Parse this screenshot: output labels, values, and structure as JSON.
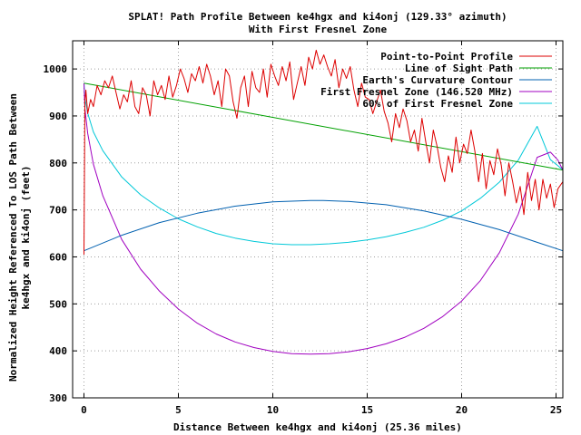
{
  "chart_data": {
    "type": "line",
    "title": "SPLAT! Path Profile Between ke4hgx and ki4onj (129.33° azimuth)",
    "subtitle": "With First Fresnel Zone",
    "xlabel": "Distance Between ke4hgx and ki4onj (25.36 miles)",
    "ylabel_lines": [
      "Normalized Height Referenced To LOS Path Between",
      "ke4hgx and ki4onj (feet)"
    ],
    "xlim": [
      -0.6,
      25.36
    ],
    "ylim": [
      300,
      1060
    ],
    "x_ticks": [
      "0",
      "5",
      "10",
      "15",
      "20",
      "25"
    ],
    "y_ticks": [
      "300",
      "400",
      "500",
      "600",
      "700",
      "800",
      "900",
      "1000"
    ],
    "grid": true,
    "legend_position": "top-right",
    "series": [
      {
        "name": "Point-to-Point Profile",
        "color": "#dd0000",
        "x": [
          0,
          0.05,
          0.1,
          0.2,
          0.35,
          0.5,
          0.7,
          0.9,
          1.1,
          1.3,
          1.5,
          1.7,
          1.9,
          2.1,
          2.3,
          2.5,
          2.7,
          2.9,
          3.1,
          3.3,
          3.5,
          3.7,
          3.9,
          4.1,
          4.3,
          4.5,
          4.7,
          4.9,
          5.1,
          5.3,
          5.5,
          5.7,
          5.9,
          6.1,
          6.3,
          6.5,
          6.7,
          6.9,
          7.1,
          7.3,
          7.5,
          7.7,
          7.9,
          8.1,
          8.3,
          8.5,
          8.7,
          8.9,
          9.1,
          9.3,
          9.5,
          9.7,
          9.9,
          10.1,
          10.3,
          10.5,
          10.7,
          10.9,
          11.1,
          11.3,
          11.5,
          11.7,
          11.9,
          12.1,
          12.3,
          12.5,
          12.7,
          12.9,
          13.1,
          13.3,
          13.5,
          13.7,
          13.9,
          14.1,
          14.3,
          14.5,
          14.7,
          14.9,
          15.1,
          15.3,
          15.5,
          15.7,
          15.9,
          16.1,
          16.3,
          16.5,
          16.7,
          16.9,
          17.1,
          17.3,
          17.5,
          17.7,
          17.9,
          18.1,
          18.3,
          18.5,
          18.7,
          18.9,
          19.1,
          19.3,
          19.5,
          19.7,
          19.9,
          20.1,
          20.3,
          20.5,
          20.7,
          20.9,
          21.1,
          21.3,
          21.5,
          21.7,
          21.9,
          22.1,
          22.3,
          22.5,
          22.7,
          22.9,
          23.1,
          23.3,
          23.5,
          23.7,
          23.9,
          24.1,
          24.3,
          24.5,
          24.7,
          24.9,
          25.1,
          25.36
        ],
        "y": [
          605,
          930,
          955,
          905,
          935,
          920,
          965,
          945,
          975,
          960,
          985,
          950,
          915,
          945,
          930,
          975,
          920,
          905,
          960,
          945,
          900,
          975,
          945,
          965,
          935,
          985,
          940,
          965,
          1000,
          980,
          950,
          990,
          975,
          1005,
          970,
          1010,
          985,
          945,
          975,
          920,
          1000,
          985,
          930,
          895,
          960,
          985,
          920,
          995,
          960,
          950,
          1000,
          940,
          1010,
          985,
          965,
          1005,
          975,
          1015,
          935,
          970,
          1005,
          965,
          1025,
          1000,
          1040,
          1010,
          1030,
          1005,
          985,
          1020,
          960,
          1000,
          980,
          1005,
          955,
          920,
          970,
          940,
          935,
          905,
          930,
          955,
          910,
          885,
          845,
          905,
          875,
          915,
          890,
          845,
          870,
          825,
          895,
          845,
          800,
          870,
          835,
          790,
          760,
          815,
          780,
          855,
          800,
          840,
          820,
          870,
          825,
          760,
          820,
          745,
          805,
          775,
          830,
          795,
          730,
          800,
          760,
          715,
          750,
          690,
          780,
          720,
          765,
          700,
          765,
          725,
          755,
          705,
          745,
          760
        ]
      },
      {
        "name": "Line of Sight Path",
        "color": "#00a000",
        "x": [
          0,
          25.36
        ],
        "y": [
          970,
          785
        ]
      },
      {
        "name": "Earth's Curvature Contour",
        "color": "#0060b0",
        "x": [
          0,
          2,
          4,
          6,
          8,
          10,
          12,
          12.68,
          14,
          16,
          18,
          20,
          22,
          24,
          25.36
        ],
        "y": [
          613,
          646,
          673,
          693,
          708,
          717,
          720,
          720,
          718,
          711,
          698,
          680,
          658,
          631,
          613
        ]
      },
      {
        "name": "First Fresnel Zone (146.520 MHz)",
        "color": "#a000c0",
        "x": [
          0,
          0.05,
          0.2,
          0.5,
          1,
          2,
          3,
          4,
          5,
          6,
          7,
          8,
          9,
          10,
          11,
          12,
          13,
          14,
          15,
          16,
          17,
          18,
          19,
          20,
          21,
          22,
          23,
          24,
          24.7,
          25.1,
          25.36
        ],
        "y": [
          970,
          916,
          863,
          797,
          730,
          637,
          574,
          527,
          489,
          459,
          436,
          419,
          407,
          399,
          394,
          393,
          394,
          398,
          405,
          415,
          429,
          448,
          473,
          506,
          550,
          609,
          691,
          812,
          823,
          806,
          785
        ]
      },
      {
        "name": "60% of First Fresnel Zone",
        "color": "#00c8d8",
        "x": [
          0,
          0.05,
          0.2,
          0.5,
          1,
          2,
          3,
          4,
          5,
          6,
          7,
          8,
          9,
          10,
          11,
          12,
          13,
          14,
          15,
          16,
          17,
          18,
          19,
          20,
          21,
          22,
          23,
          24,
          24.7,
          25.1,
          25.36
        ],
        "y": [
          970,
          938,
          906,
          866,
          826,
          770,
          732,
          704,
          681,
          664,
          650,
          640,
          633,
          628,
          626,
          626,
          628,
          631,
          636,
          643,
          652,
          663,
          678,
          698,
          725,
          759,
          806,
          878,
          807,
          794,
          785
        ]
      }
    ]
  }
}
